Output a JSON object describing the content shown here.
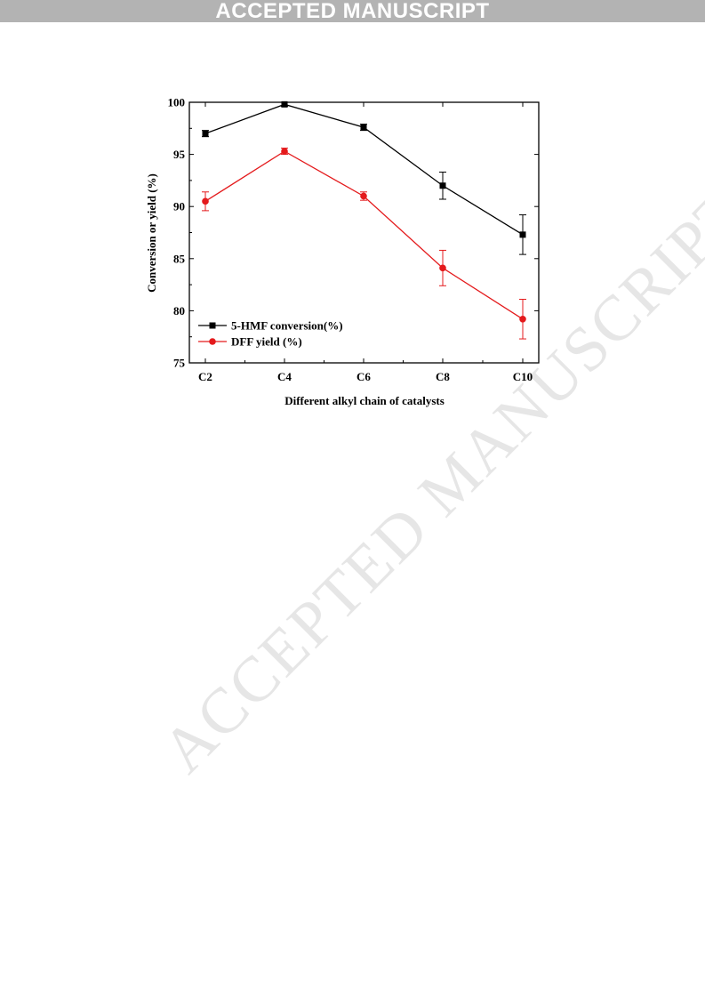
{
  "header": {
    "banner": "ACCEPTED MANUSCRIPT"
  },
  "watermark": "ACCEPTED MANUSCRIPT",
  "chart_data": {
    "type": "line",
    "title": "",
    "xlabel": "Different alkyl chain of catalysts",
    "ylabel": "Conversion or yield (%)",
    "categories": [
      "C2",
      "C4",
      "C6",
      "C8",
      "C10"
    ],
    "ylim": [
      75,
      100
    ],
    "yticks": [
      75,
      80,
      85,
      90,
      95,
      100
    ],
    "grid": false,
    "legend": "bottom-left",
    "series": [
      {
        "name": "5-HMF conversion(%)",
        "color": "#000000",
        "marker": "square",
        "values": [
          97.0,
          99.8,
          97.6,
          92.0,
          87.3
        ],
        "errors": [
          0.3,
          0.2,
          0.3,
          1.3,
          1.9
        ]
      },
      {
        "name": "DFF yield (%)",
        "color": "#e41a1c",
        "marker": "circle",
        "values": [
          90.5,
          95.3,
          91.0,
          84.1,
          79.2
        ],
        "errors": [
          0.9,
          0.3,
          0.4,
          1.7,
          1.9
        ]
      }
    ]
  }
}
